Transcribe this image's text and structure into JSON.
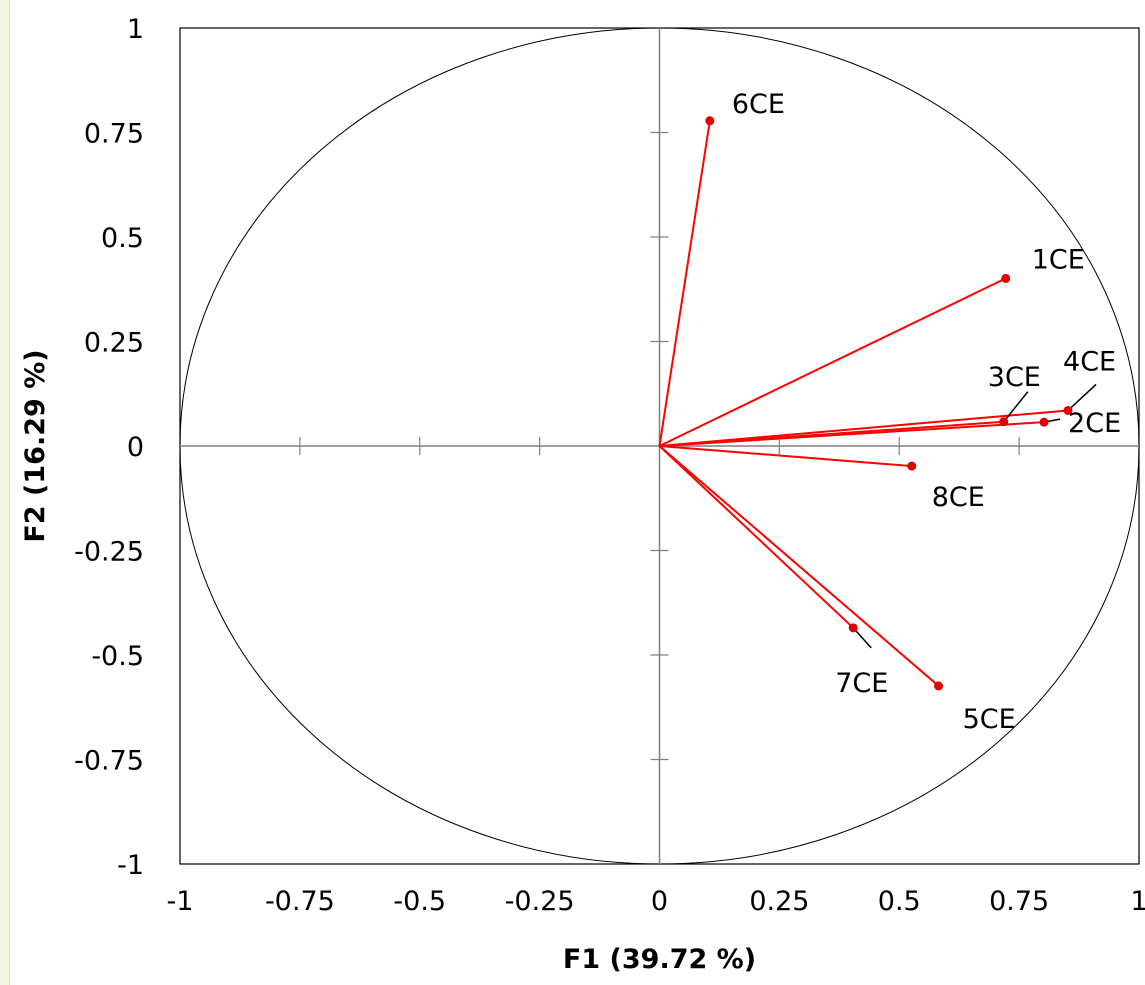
{
  "chart_data": {
    "type": "scatter",
    "subtype": "correlation circle (variables factor map)",
    "title": "",
    "xlabel": "F1 (39.72 %)",
    "ylabel": "F2 (16.29 %)",
    "xlim": [
      -1,
      1
    ],
    "ylim": [
      -1,
      1
    ],
    "x_ticks": [
      "-1",
      "-0.75",
      "-0.5",
      "-0.25",
      "0",
      "0.25",
      "0.5",
      "0.75",
      "1"
    ],
    "y_ticks": [
      "1",
      "0.75",
      "0.5",
      "0.25",
      "0",
      "-0.25",
      "-0.5",
      "-0.75",
      "-1"
    ],
    "x_tick_values": [
      -1,
      -0.75,
      -0.5,
      -0.25,
      0,
      0.25,
      0.5,
      0.75,
      1
    ],
    "y_tick_values": [
      1,
      0.75,
      0.5,
      0.25,
      0,
      -0.25,
      -0.5,
      -0.75,
      -1
    ],
    "unit_circle": true,
    "grid": false,
    "vector_color": "#ff0000",
    "point_color": "#e00000",
    "points": [
      {
        "name": "6CE",
        "x": 0.105,
        "y": 0.778
      },
      {
        "name": "1CE",
        "x": 0.722,
        "y": 0.401
      },
      {
        "name": "3CE",
        "x": 0.718,
        "y": 0.058
      },
      {
        "name": "4CE",
        "x": 0.852,
        "y": 0.085
      },
      {
        "name": "2CE",
        "x": 0.802,
        "y": 0.057
      },
      {
        "name": "8CE",
        "x": 0.526,
        "y": -0.048
      },
      {
        "name": "7CE",
        "x": 0.404,
        "y": -0.435
      },
      {
        "name": "5CE",
        "x": 0.582,
        "y": -0.574
      }
    ]
  }
}
